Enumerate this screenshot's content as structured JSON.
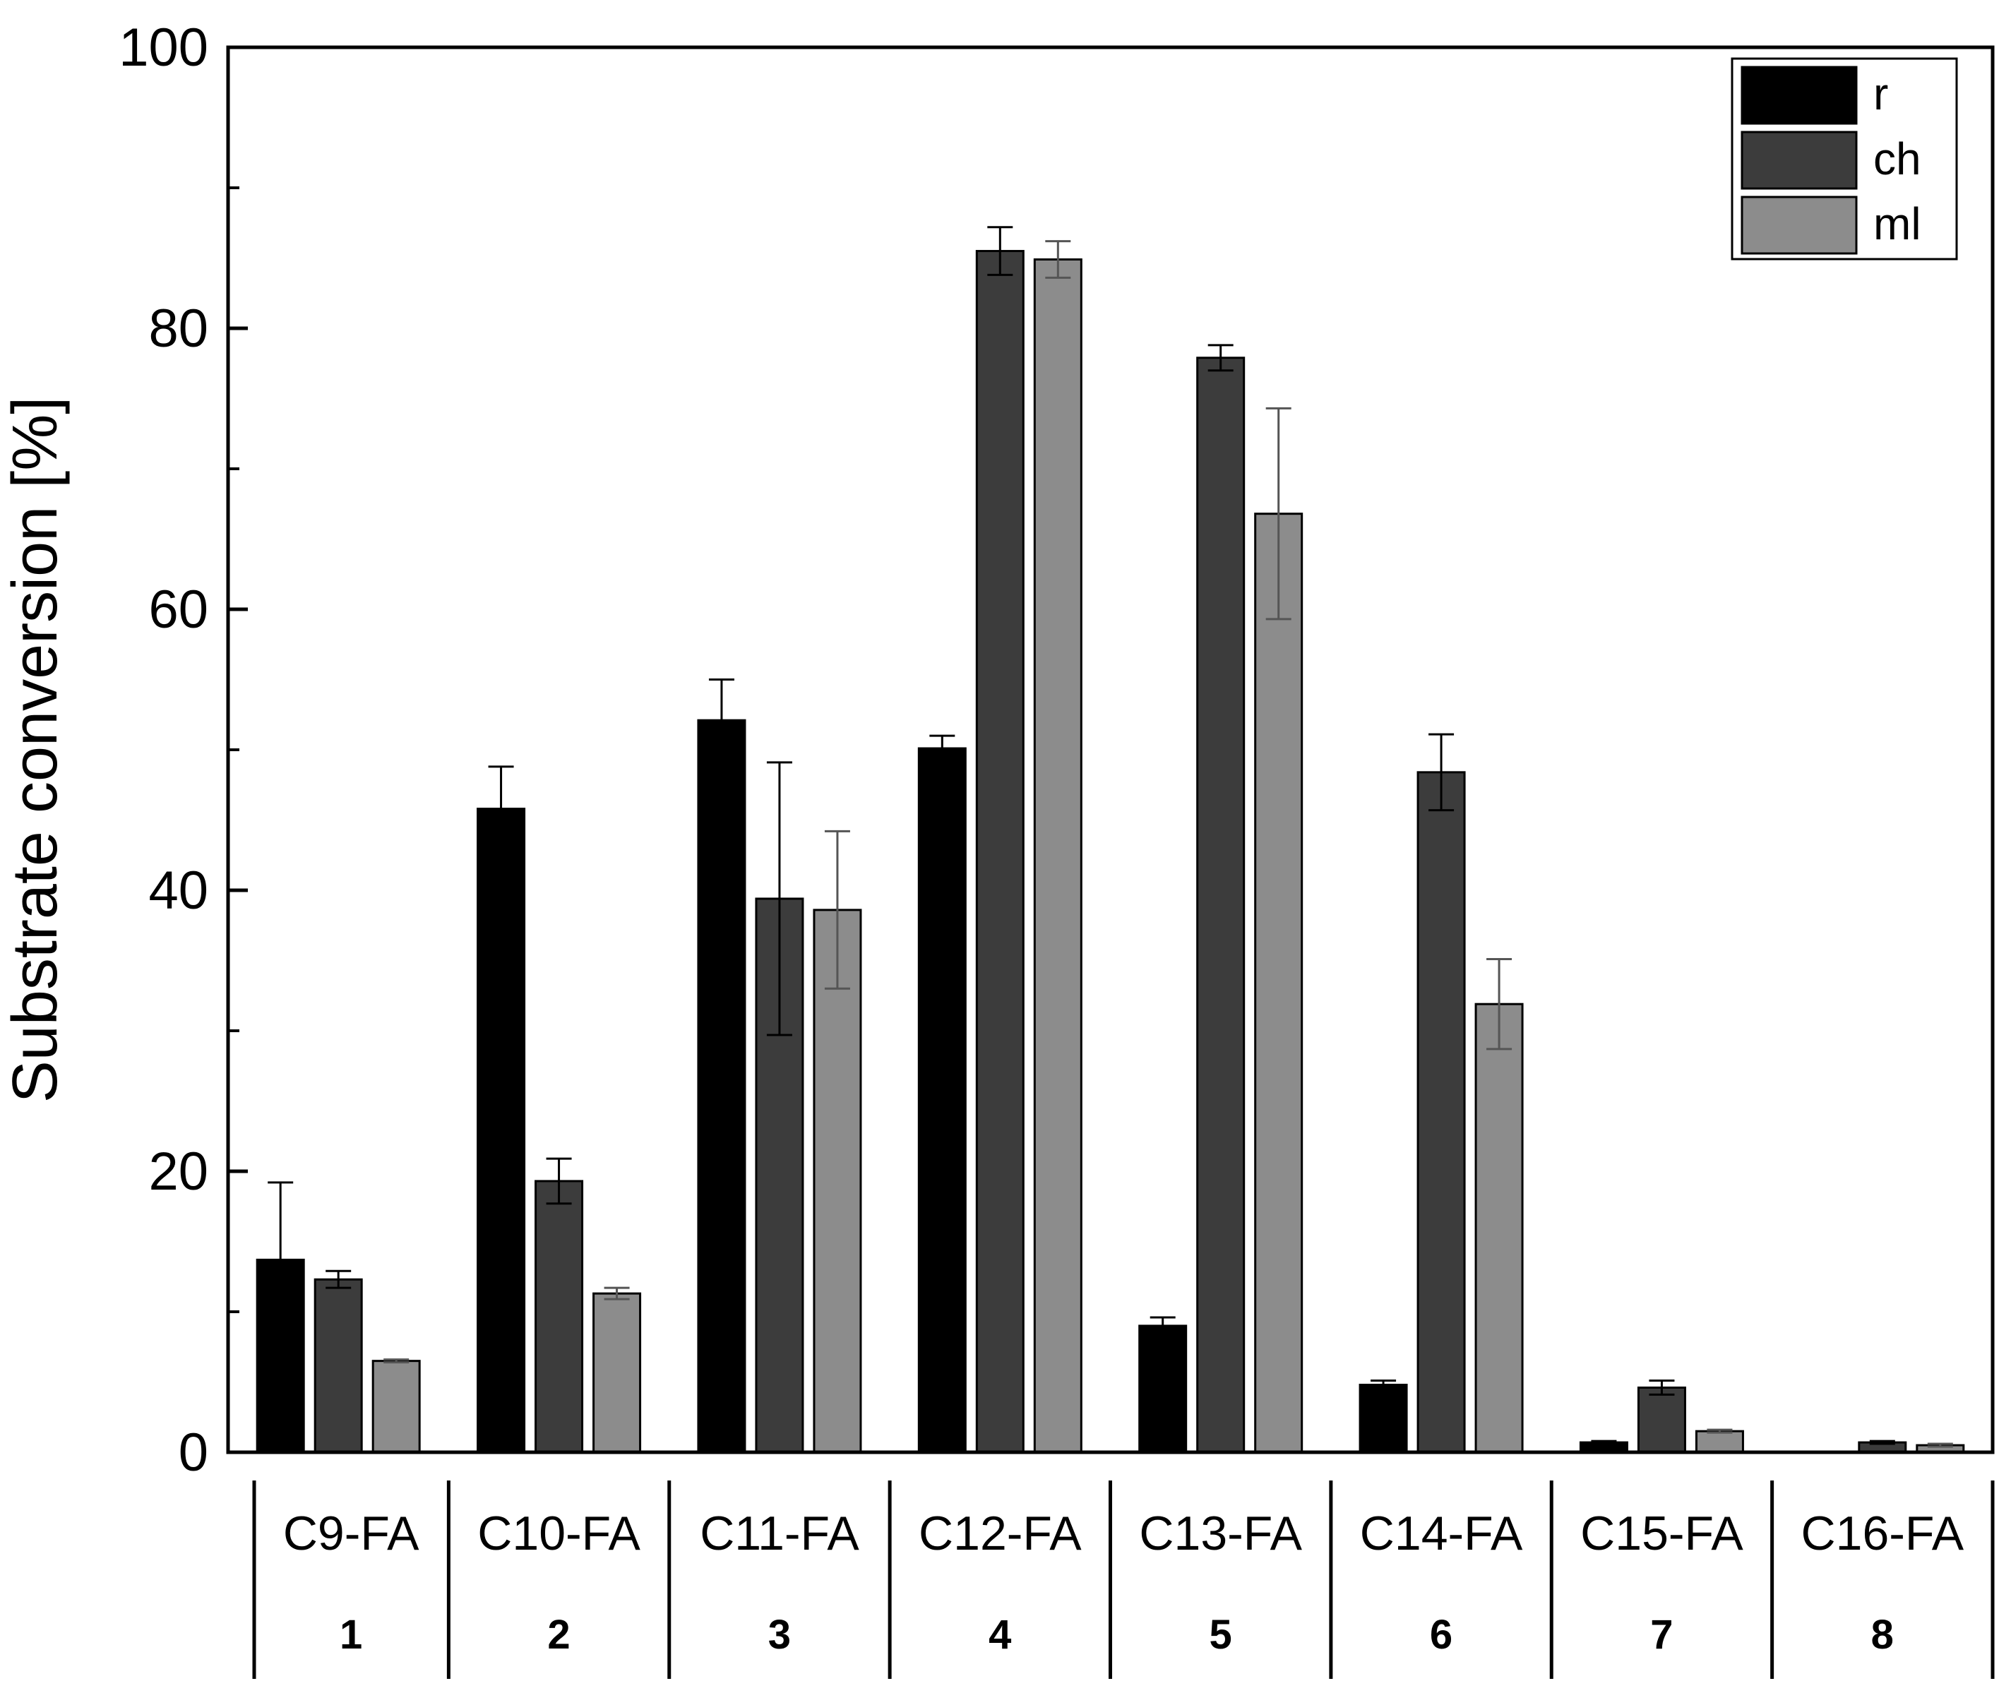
{
  "chart_data": {
    "type": "bar",
    "title": "",
    "xlabel": "",
    "ylabel": "Substrate conversion [%]",
    "ylim": [
      0,
      100
    ],
    "yticks": [
      0,
      20,
      40,
      60,
      80,
      100
    ],
    "grid": false,
    "legend_position": "top-right",
    "categories": [
      "C9-FA",
      "C10-FA",
      "C11-FA",
      "C12-FA",
      "C13-FA",
      "C14-FA",
      "C15-FA",
      "C16-FA"
    ],
    "category_numbers": [
      "1",
      "2",
      "3",
      "4",
      "5",
      "6",
      "7",
      "8"
    ],
    "series": [
      {
        "name": "r",
        "color": "#000000",
        "values": [
          13.7,
          45.8,
          52.1,
          50.1,
          9.0,
          4.8,
          0.7,
          0.0
        ],
        "errors": [
          5.5,
          3.0,
          2.9,
          0.9,
          0.6,
          0.3,
          0.1,
          0.0
        ]
      },
      {
        "name": "ch",
        "color": "#3c3c3c",
        "values": [
          12.3,
          19.3,
          39.4,
          85.5,
          77.9,
          48.4,
          4.6,
          0.7
        ],
        "errors": [
          0.6,
          1.6,
          9.7,
          1.7,
          0.9,
          2.7,
          0.5,
          0.1
        ]
      },
      {
        "name": "ml",
        "color": "#8c8c8c",
        "values": [
          6.5,
          11.3,
          38.6,
          84.9,
          66.8,
          31.9,
          1.5,
          0.5
        ],
        "errors": [
          0.1,
          0.4,
          5.6,
          1.3,
          7.5,
          3.2,
          0.1,
          0.1
        ]
      }
    ]
  }
}
